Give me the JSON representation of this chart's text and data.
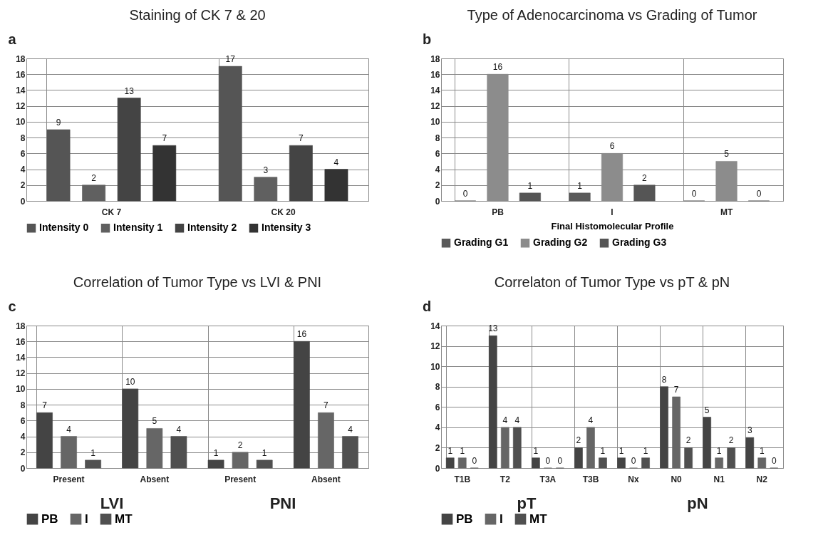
{
  "chart_data": [
    {
      "type": "bar",
      "title": "Staining of CK 7 & 20",
      "annotations": [
        "a"
      ],
      "categories": [
        "CK 7",
        "CK 20"
      ],
      "series": [
        {
          "name": "Intensity 0",
          "color": "#555555",
          "values": [
            9,
            17
          ]
        },
        {
          "name": "Intensity 1",
          "color": "#606060",
          "values": [
            2,
            3
          ]
        },
        {
          "name": "Intensity 2",
          "color": "#444444",
          "values": [
            13,
            7
          ]
        },
        {
          "name": "Intensity 3",
          "color": "#333333",
          "values": [
            7,
            4
          ]
        }
      ],
      "ylim": [
        0,
        18
      ],
      "yticks": [
        0,
        2,
        4,
        6,
        8,
        10,
        12,
        14,
        16,
        18
      ],
      "grid": true,
      "legend": "bottom",
      "data_labels": true
    },
    {
      "type": "bar",
      "title": "Type of Adenocarcinoma vs Grading of Tumor",
      "annotations": [
        "b"
      ],
      "xlabel": "Final Histomolecular Profile",
      "categories": [
        "PB",
        "I",
        "MT"
      ],
      "series": [
        {
          "name": "Grading G1",
          "color": "#5a5a5a",
          "values": [
            0,
            1,
            0
          ]
        },
        {
          "name": "Grading G2",
          "color": "#8c8c8c",
          "values": [
            16,
            6,
            5
          ]
        },
        {
          "name": "Grading G3",
          "color": "#555555",
          "values": [
            1,
            2,
            0
          ]
        }
      ],
      "ylim": [
        0,
        18
      ],
      "yticks": [
        0,
        2,
        4,
        6,
        8,
        10,
        12,
        14,
        16,
        18
      ],
      "grid": true,
      "legend": "bottom",
      "data_labels": true
    },
    {
      "type": "bar",
      "title": "Correlation of Tumor Type vs LVI & PNI",
      "annotations": [
        "c",
        "LVI",
        "PNI"
      ],
      "categories": [
        "Present",
        "Absent",
        "Present",
        "Absent"
      ],
      "series": [
        {
          "name": "PB",
          "color": "#444444",
          "values": [
            7,
            10,
            1,
            16
          ]
        },
        {
          "name": "I",
          "color": "#666666",
          "values": [
            4,
            5,
            2,
            7
          ]
        },
        {
          "name": "MT",
          "color": "#505050",
          "values": [
            1,
            4,
            1,
            4
          ]
        }
      ],
      "ylim": [
        0,
        18
      ],
      "yticks": [
        0,
        2,
        4,
        6,
        8,
        10,
        12,
        14,
        16,
        18
      ],
      "grid": true,
      "legend": "bottom",
      "data_labels": true
    },
    {
      "type": "bar",
      "title": "Correlaton of Tumor Type vs pT & pN",
      "annotations": [
        "d",
        "pT",
        "pN"
      ],
      "categories": [
        "T1B",
        "T2",
        "T3A",
        "T3B",
        "Nx",
        "N0",
        "N1",
        "N2"
      ],
      "series": [
        {
          "name": "PB",
          "color": "#444444",
          "values": [
            1,
            13,
            1,
            2,
            1,
            8,
            5,
            3
          ]
        },
        {
          "name": "I",
          "color": "#666666",
          "values": [
            1,
            4,
            0,
            4,
            0,
            7,
            1,
            1
          ]
        },
        {
          "name": "MT",
          "color": "#505050",
          "values": [
            0,
            4,
            0,
            1,
            1,
            2,
            2,
            0
          ]
        }
      ],
      "ylim": [
        0,
        14
      ],
      "yticks": [
        0,
        2,
        4,
        6,
        8,
        10,
        12,
        14
      ],
      "grid": true,
      "legend": "bottom",
      "data_labels": true
    }
  ]
}
